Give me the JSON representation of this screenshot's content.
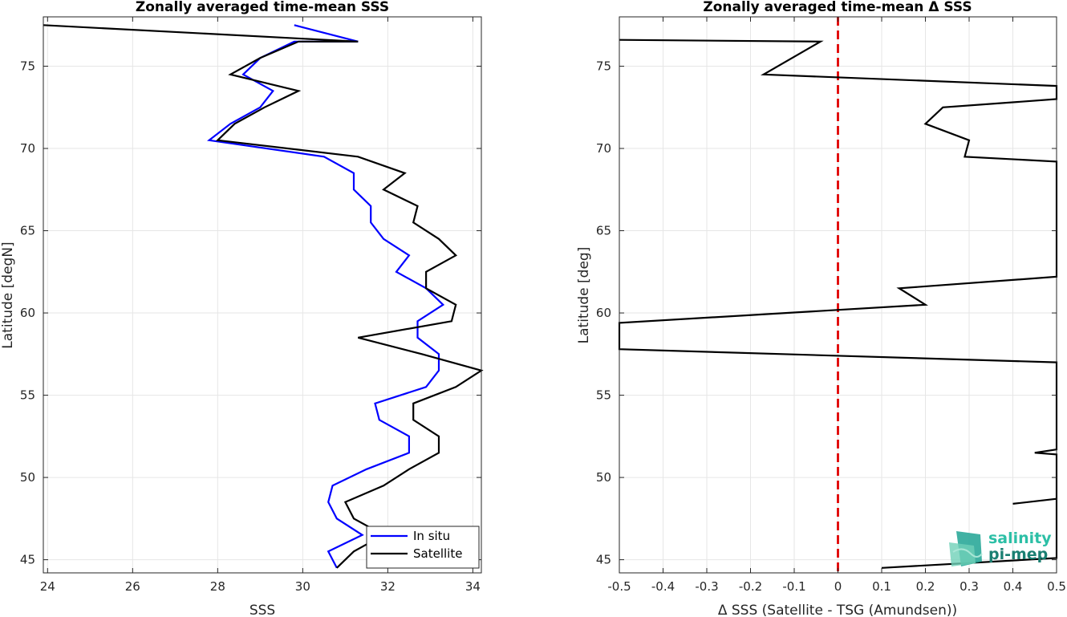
{
  "chart_data": [
    {
      "type": "line",
      "title": "Zonally averaged time-mean SSS",
      "xlabel": "SSS",
      "ylabel": "Latitude [degN]",
      "xlim": [
        23.9,
        34.2
      ],
      "ylim": [
        44.2,
        78
      ],
      "xticks": [
        24,
        26,
        28,
        30,
        32,
        34
      ],
      "yticks": [
        45,
        50,
        55,
        60,
        65,
        70,
        75
      ],
      "grid": true,
      "legend_position": "bottom-right",
      "series": [
        {
          "name": "In situ",
          "color": "#0000ff",
          "x": [
            30.8,
            30.6,
            31.4,
            30.8,
            30.6,
            30.7,
            31.5,
            32.5,
            32.5,
            31.8,
            31.7,
            32.9,
            33.2,
            33.2,
            32.7,
            32.7,
            33.3,
            32.9,
            32.2,
            32.5,
            31.9,
            31.6,
            31.6,
            31.2,
            31.2,
            30.5,
            27.8,
            28.3,
            29.0,
            29.3,
            28.6,
            29.0,
            29.8,
            31.3,
            29.8
          ],
          "y": [
            44.5,
            45.5,
            46.5,
            47.5,
            48.5,
            49.5,
            50.5,
            51.5,
            52.5,
            53.5,
            54.5,
            55.5,
            56.5,
            57.5,
            58.5,
            59.5,
            60.5,
            61.5,
            62.5,
            63.5,
            64.5,
            65.5,
            66.5,
            67.5,
            68.5,
            69.5,
            70.5,
            71.5,
            72.5,
            73.5,
            74.5,
            75.5,
            76.5,
            76.5,
            77.5
          ]
        },
        {
          "name": "Satellite",
          "color": "#000000",
          "x": [
            30.8,
            31.2,
            31.9,
            31.2,
            31.0,
            31.9,
            32.5,
            33.2,
            33.2,
            32.6,
            32.6,
            33.6,
            34.2,
            32.8,
            31.3,
            33.5,
            33.6,
            32.9,
            32.9,
            33.6,
            33.2,
            32.6,
            32.7,
            31.9,
            32.4,
            31.3,
            28.0,
            28.4,
            29.1,
            29.9,
            28.3,
            29.0,
            29.9,
            31.3,
            23.9
          ],
          "y": [
            44.5,
            45.5,
            46.5,
            47.5,
            48.5,
            49.5,
            50.5,
            51.5,
            52.5,
            53.5,
            54.5,
            55.5,
            56.5,
            57.5,
            58.5,
            59.5,
            60.5,
            61.5,
            62.5,
            63.5,
            64.5,
            65.5,
            66.5,
            67.5,
            68.5,
            69.5,
            70.5,
            71.5,
            72.5,
            73.5,
            74.5,
            75.5,
            76.5,
            76.5,
            77.5
          ]
        }
      ]
    },
    {
      "type": "line",
      "title": "Zonally averaged time-mean Δ SSS",
      "xlabel": "Δ SSS (Satellite - TSG (Amundsen))",
      "ylabel": "Latitude [deg]",
      "xlim": [
        -0.5,
        0.5
      ],
      "ylim": [
        44.2,
        78
      ],
      "xticks": [
        -0.5,
        -0.4,
        -0.3,
        -0.2,
        -0.1,
        0,
        0.1,
        0.2,
        0.3,
        0.4,
        0.5
      ],
      "xticklabels": [
        "-0.5",
        "-0.4",
        "-0.3",
        "-0.2",
        "-0.1",
        "0",
        "0.1",
        "0.2",
        "0.3",
        "0.4",
        "0.5"
      ],
      "yticks": [
        45,
        50,
        55,
        60,
        65,
        70,
        75
      ],
      "grid": true,
      "reference_line": {
        "x": 0,
        "color": "#e00000",
        "style": "dashed"
      },
      "series": [
        {
          "color": "#000000",
          "x": [
            0.1,
            0.5,
            0.5,
            0.5,
            0.5,
            0.5,
            0.4,
            0.5,
            0.5,
            0.45,
            0.5,
            0.5,
            0.5,
            -0.5,
            -0.5,
            0.2,
            0.14,
            0.5,
            0.5,
            0.29,
            0.3,
            0.2,
            0.24,
            0.5,
            0.5,
            -0.17,
            -0.04,
            -0.5
          ],
          "y": [
            44.5,
            45.1,
            46.1,
            47.1,
            48.1,
            48.7,
            48.4,
            48.7,
            51.4,
            51.5,
            51.7,
            57.0,
            57.0,
            57.8,
            59.4,
            60.5,
            61.5,
            62.2,
            69.2,
            69.5,
            70.5,
            71.5,
            72.5,
            73.0,
            73.8,
            74.5,
            76.5,
            76.6
          ]
        }
      ]
    }
  ],
  "legend": {
    "items": [
      "In situ",
      "Satellite"
    ]
  },
  "logo": {
    "line1": "salinity",
    "line2": "pi-mep"
  }
}
